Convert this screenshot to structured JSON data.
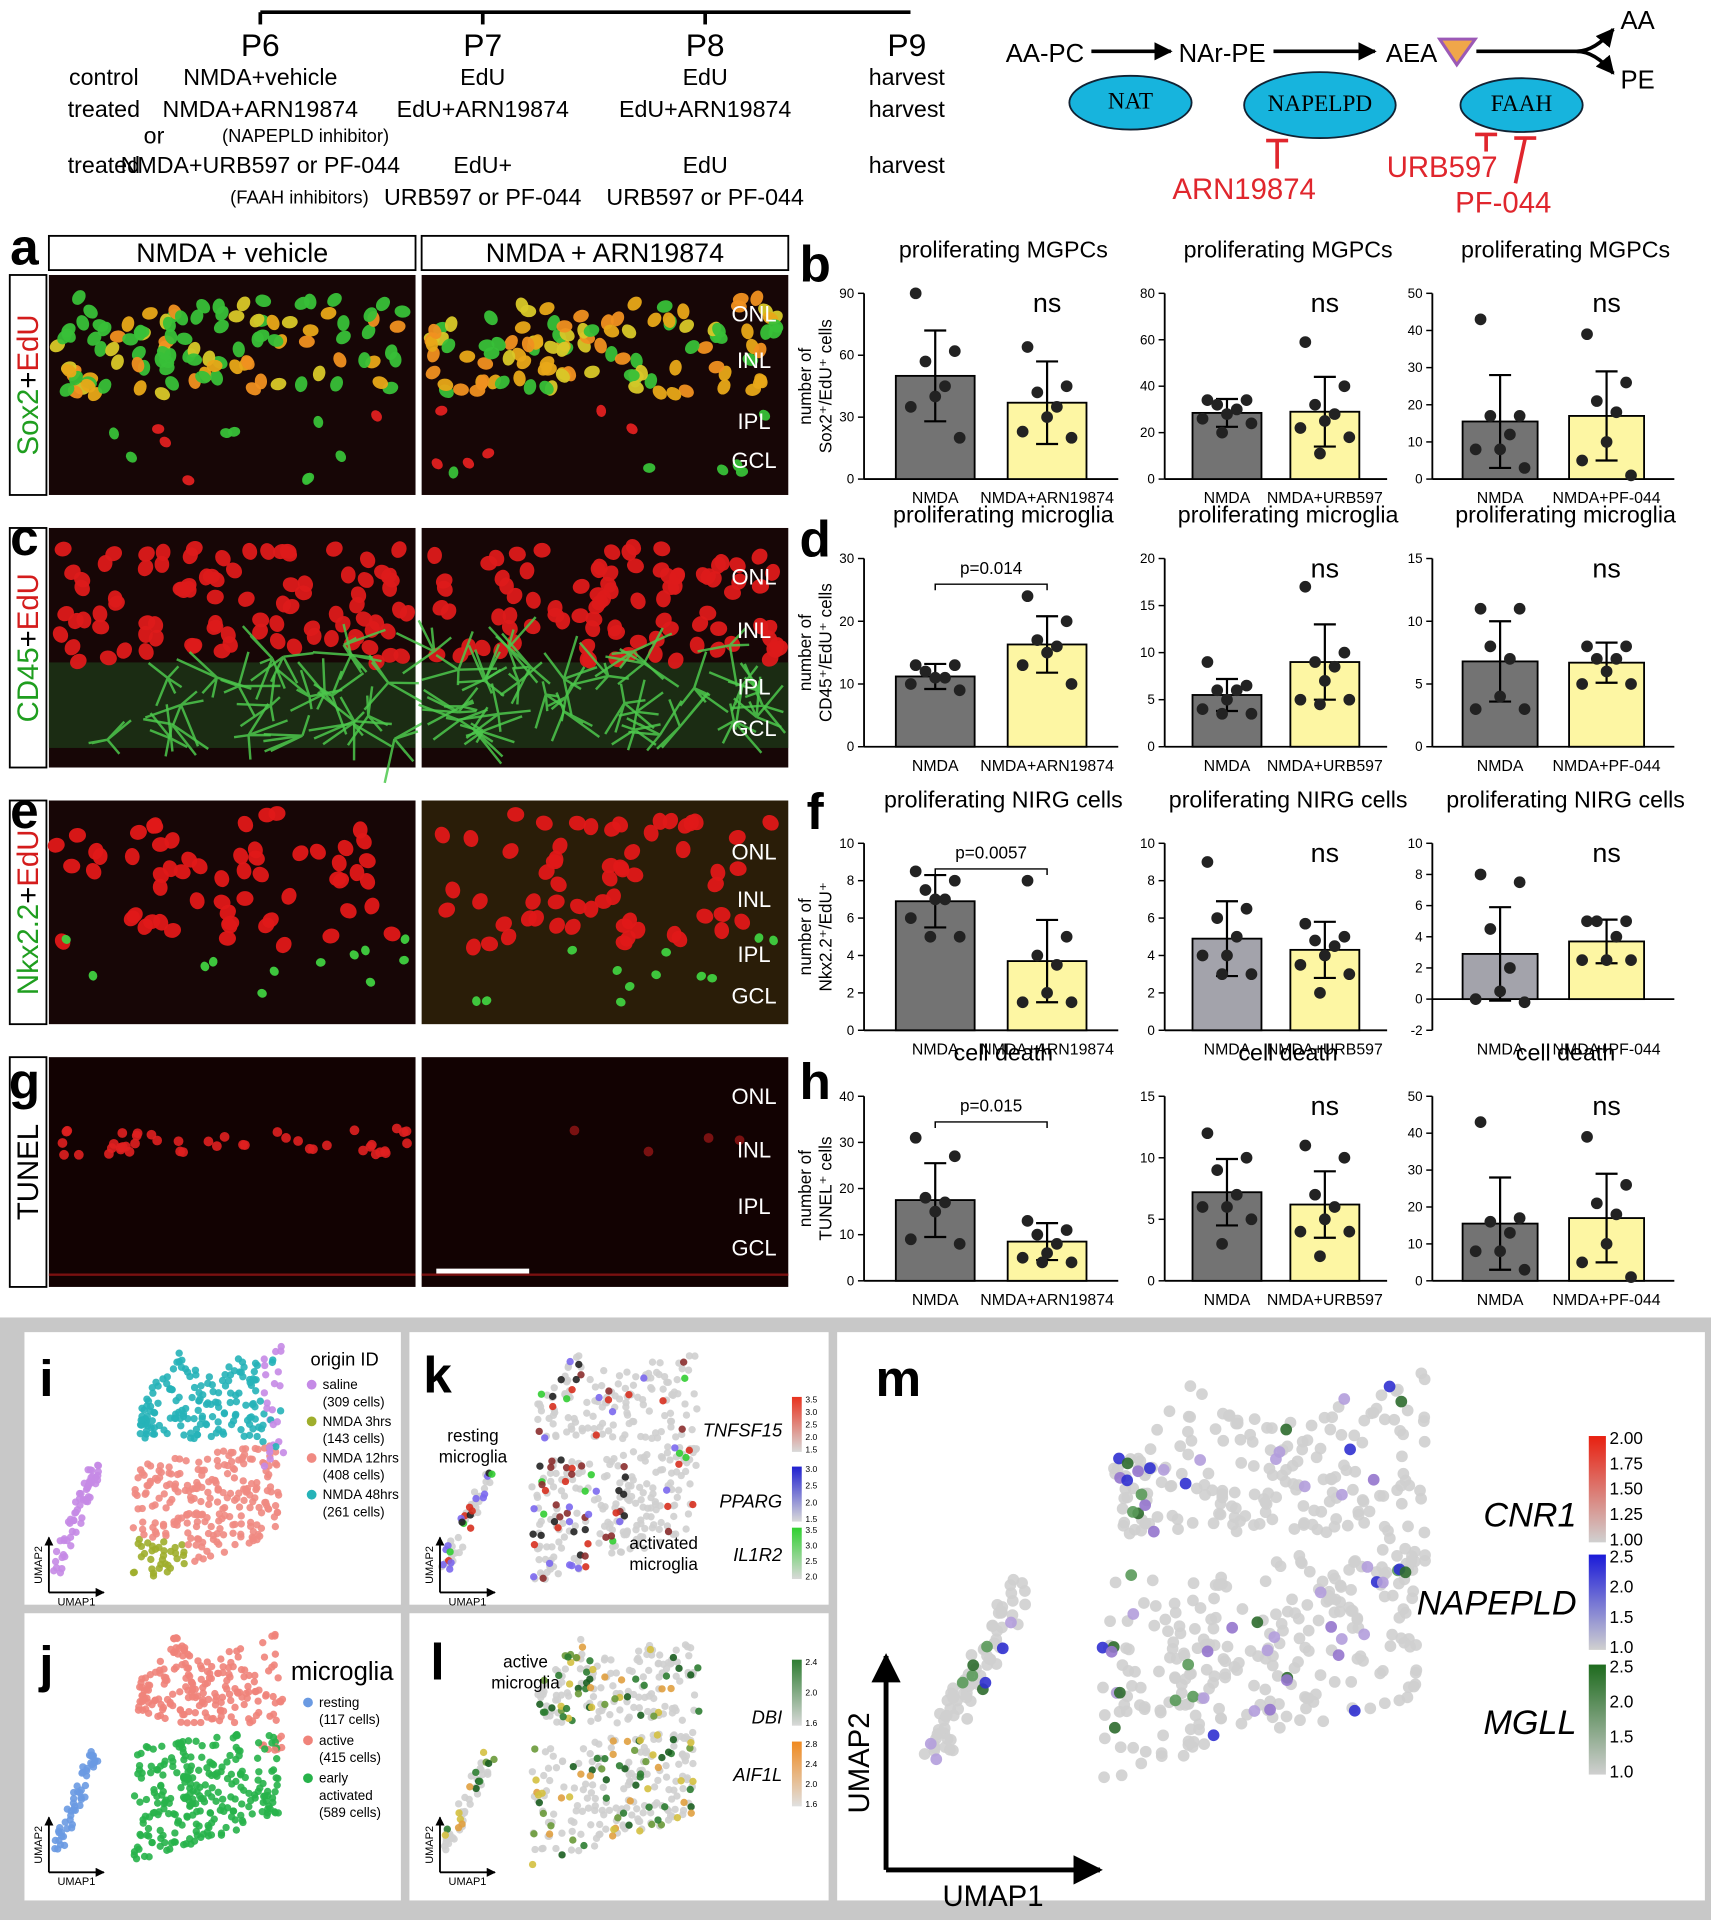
{
  "timeline": {
    "days": [
      "P6",
      "P7",
      "P8",
      "P9"
    ],
    "conditions": [
      "control",
      "treated",
      "or",
      "treated"
    ],
    "columns": [
      [
        "NMDA+vehicle",
        "NMDA+ARN19874",
        "(NAPEPLD inhibitor)",
        "NMDA+URB597 or PF-044",
        "(FAAH inhibitors)"
      ],
      [
        "EdU",
        "EdU+ARN19874",
        "EdU+",
        "URB597 or PF-044"
      ],
      [
        "EdU",
        "EdU+ARN19874",
        "EdU",
        "URB597 or PF-044"
      ],
      [
        "harvest",
        "harvest",
        "harvest"
      ]
    ]
  },
  "pathway": {
    "metabolites": [
      "AA-PC",
      "NAr-PE",
      "AEA",
      "AA",
      "PE"
    ],
    "enzymes": [
      "NAT",
      "NAPELPD",
      "FAAH"
    ],
    "inhibitors": [
      "ARN19874",
      "URB597",
      "PF-044"
    ]
  },
  "panel_labels": [
    "a",
    "b",
    "c",
    "d",
    "e",
    "f",
    "g",
    "h",
    "i",
    "j",
    "k",
    "l",
    "m"
  ],
  "micrographs": {
    "conditions": [
      "NMDA + vehicle",
      "NMDA + ARN19874"
    ],
    "layers": [
      "ONL",
      "INL",
      "IPL",
      "GCL"
    ],
    "rows": [
      {
        "stain": [
          {
            "text": "Sox2",
            "color": "#1f9e1f"
          },
          {
            "text": "+",
            "color": "#000000"
          },
          {
            "text": "EdU",
            "color": "#d41c1c"
          }
        ]
      },
      {
        "stain": [
          {
            "text": "CD45",
            "color": "#1f9e1f"
          },
          {
            "text": "+",
            "color": "#000000"
          },
          {
            "text": "EdU",
            "color": "#d41c1c"
          }
        ]
      },
      {
        "stain": [
          {
            "text": "Nkx2.2",
            "color": "#1f9e1f"
          },
          {
            "text": "+",
            "color": "#000000"
          },
          {
            "text": "EdU",
            "color": "#d41c1c"
          }
        ]
      },
      {
        "stain": [
          {
            "text": "TUNEL",
            "color": "#000000"
          }
        ]
      }
    ]
  },
  "chart_data": [
    {
      "type": "bar",
      "title": "proliferating MGPCs",
      "ylabel": [
        "number of",
        "Sox2⁺/EdU⁺ cells"
      ],
      "categories": [
        "NMDA",
        "NMDA+ARN19874"
      ],
      "values": [
        50,
        37
      ],
      "errors": [
        22,
        20
      ],
      "points": [
        [
          90,
          62,
          57,
          45,
          40,
          35,
          20
        ],
        [
          64,
          45,
          42,
          35,
          30,
          23,
          20
        ]
      ],
      "colors": [
        "#737373",
        "#fdf6a3"
      ],
      "ylim": [
        0,
        90
      ],
      "yticks": [
        0,
        30,
        60,
        90
      ],
      "annotation": "ns"
    },
    {
      "type": "bar",
      "title": "proliferating MGPCs",
      "categories": [
        "NMDA",
        "NMDA+URB597"
      ],
      "values": [
        28.5,
        29
      ],
      "errors": [
        6,
        15
      ],
      "points": [
        [
          34,
          34,
          32,
          30,
          28,
          26,
          24,
          20
        ],
        [
          59,
          40,
          32,
          28,
          25,
          22,
          18,
          11
        ]
      ],
      "colors": [
        "#737373",
        "#fdf6a3"
      ],
      "ylim": [
        0,
        80
      ],
      "yticks": [
        0,
        20,
        40,
        60,
        80
      ],
      "annotation": "ns"
    },
    {
      "type": "bar",
      "title": "proliferating MGPCs",
      "categories": [
        "NMDA",
        "NMDA+PF-044"
      ],
      "values": [
        15.5,
        17
      ],
      "errors": [
        12.5,
        12
      ],
      "points": [
        [
          43,
          17,
          17,
          12,
          8,
          8,
          3
        ],
        [
          39,
          26,
          21,
          18,
          10,
          5,
          1
        ]
      ],
      "colors": [
        "#737373",
        "#fdf6a3"
      ],
      "ylim": [
        0,
        50
      ],
      "yticks": [
        0,
        10,
        20,
        30,
        40,
        50
      ],
      "annotation": "ns"
    },
    {
      "type": "bar",
      "title": "proliferating microglia",
      "ylabel": [
        "number of",
        "CD45⁺/EdU⁺ cells"
      ],
      "categories": [
        "NMDA",
        "NMDA+ARN19874"
      ],
      "values": [
        11.2,
        16.3
      ],
      "errors": [
        2,
        4.5
      ],
      "points": [
        [
          13,
          13,
          12,
          11,
          11,
          10,
          9
        ],
        [
          24,
          20,
          17,
          16,
          15,
          13,
          10
        ]
      ],
      "colors": [
        "#737373",
        "#fdf6a3"
      ],
      "ylim": [
        0,
        30
      ],
      "yticks": [
        0,
        10,
        20,
        30
      ],
      "annotation": "p=0.014",
      "bracket": true
    },
    {
      "type": "bar",
      "title": "proliferating microglia",
      "categories": [
        "NMDA",
        "NMDA+URB597"
      ],
      "values": [
        5.5,
        9
      ],
      "errors": [
        1.7,
        4
      ],
      "points": [
        [
          9,
          6.5,
          6,
          6,
          5,
          4,
          3.5,
          3.5
        ],
        [
          17,
          10,
          9,
          8.5,
          7,
          5,
          5,
          4.5
        ]
      ],
      "colors": [
        "#737373",
        "#fdf6a3"
      ],
      "ylim": [
        0,
        20
      ],
      "yticks": [
        0,
        5,
        10,
        15,
        20
      ],
      "annotation": "ns"
    },
    {
      "type": "bar",
      "title": "proliferating microglia",
      "categories": [
        "NMDA",
        "NMDA+PF-044"
      ],
      "values": [
        6.8,
        6.7
      ],
      "errors": [
        3.2,
        1.6
      ],
      "points": [
        [
          11,
          11,
          8,
          7,
          4,
          3,
          3
        ],
        [
          8,
          8,
          7,
          7,
          6,
          5,
          5
        ]
      ],
      "colors": [
        "#737373",
        "#fdf6a3"
      ],
      "ylim": [
        0,
        15
      ],
      "yticks": [
        0,
        5,
        10,
        15
      ],
      "annotation": "ns"
    },
    {
      "type": "bar",
      "title": "proliferating NIRG cells",
      "ylabel": [
        "number of",
        "Nkx2.2⁺/EdU⁺"
      ],
      "categories": [
        "NMDA",
        "NMDA+ARN19874"
      ],
      "values": [
        6.9,
        3.7
      ],
      "errors": [
        1.4,
        2.2
      ],
      "points": [
        [
          8.5,
          8,
          7.5,
          7,
          7,
          6,
          5,
          5
        ],
        [
          8,
          5,
          4,
          3.5,
          2,
          1.5,
          1.5
        ]
      ],
      "colors": [
        "#737373",
        "#fdf6a3"
      ],
      "ylim": [
        0,
        10
      ],
      "yticks": [
        0,
        2,
        4,
        6,
        8,
        10
      ],
      "annotation": "p=0.0057",
      "bracket": true
    },
    {
      "type": "bar",
      "title": "proliferating NIRG cells",
      "categories": [
        "NMDA",
        "NMDA+URB597"
      ],
      "values": [
        4.9,
        4.3
      ],
      "errors": [
        2,
        1.5
      ],
      "points": [
        [
          9,
          6.5,
          6,
          5,
          4,
          4,
          3,
          3
        ],
        [
          5.7,
          5,
          4.8,
          4.5,
          4,
          3.5,
          3,
          2
        ]
      ],
      "colors": [
        "#a3a3ab",
        "#fdf6a3"
      ],
      "ylim": [
        0,
        10
      ],
      "yticks": [
        0,
        2,
        4,
        6,
        8,
        10
      ],
      "annotation": "ns"
    },
    {
      "type": "bar",
      "title": "proliferating NIRG cells",
      "categories": [
        "NMDA",
        "NMDA+PF-044"
      ],
      "values": [
        2.9,
        3.7
      ],
      "errors": [
        3,
        1.4
      ],
      "points": [
        [
          8,
          7.5,
          4.5,
          2,
          0.5,
          0,
          -0.2
        ],
        [
          5,
          5,
          5,
          4,
          2.5,
          2.5,
          2.5
        ]
      ],
      "colors": [
        "#a3a3ab",
        "#fdf6a3"
      ],
      "ylim": [
        -2,
        10
      ],
      "yticks": [
        -2,
        0,
        2,
        4,
        6,
        8,
        10
      ],
      "annotation": "ns"
    },
    {
      "type": "bar",
      "title": "cell death",
      "ylabel": [
        "number of",
        "TUNEL⁺ cells"
      ],
      "categories": [
        "NMDA",
        "NMDA+ARN19874"
      ],
      "values": [
        17.5,
        8.5
      ],
      "errors": [
        8,
        4
      ],
      "points": [
        [
          31,
          27,
          18,
          17,
          15,
          9,
          8
        ],
        [
          13,
          11,
          10,
          8,
          6,
          5,
          4,
          4
        ]
      ],
      "colors": [
        "#737373",
        "#fdf6a3"
      ],
      "ylim": [
        0,
        40
      ],
      "yticks": [
        0,
        10,
        20,
        30,
        40
      ],
      "annotation": "p=0.015",
      "bracket": true
    },
    {
      "type": "bar",
      "title": "cell death",
      "categories": [
        "NMDA",
        "NMDA+URB597"
      ],
      "values": [
        7.2,
        6.2
      ],
      "errors": [
        2.7,
        2.7
      ],
      "points": [
        [
          12,
          10,
          9,
          7,
          6,
          6,
          5,
          3
        ],
        [
          11,
          10,
          7,
          6,
          5,
          4,
          4,
          2
        ]
      ],
      "colors": [
        "#737373",
        "#fdf6a3"
      ],
      "ylim": [
        0,
        15
      ],
      "yticks": [
        0,
        5,
        10,
        15
      ],
      "annotation": "ns"
    },
    {
      "type": "bar",
      "title": "cell death",
      "categories": [
        "NMDA",
        "NMDA+PF-044"
      ],
      "values": [
        15.5,
        17
      ],
      "errors": [
        12.5,
        12
      ],
      "points": [
        [
          43,
          17,
          16,
          13,
          8,
          8,
          3
        ],
        [
          39,
          26,
          21,
          18,
          10,
          5,
          1
        ]
      ],
      "colors": [
        "#737373",
        "#fdf6a3"
      ],
      "ylim": [
        0,
        50
      ],
      "yticks": [
        0,
        10,
        20,
        30,
        40,
        50
      ],
      "annotation": "ns"
    }
  ],
  "umap": {
    "axes": [
      "UMAP1",
      "UMAP2"
    ],
    "i": {
      "title": "origin ID",
      "legend": [
        {
          "lines": [
            "saline",
            "(309 cells)"
          ],
          "color": "#c58ae6"
        },
        {
          "lines": [
            "NMDA 3hrs",
            "(143 cells)"
          ],
          "color": "#9fae2c"
        },
        {
          "lines": [
            "NMDA 12hrs",
            "(408 cells)"
          ],
          "color": "#f08a82"
        },
        {
          "lines": [
            "NMDA 48hrs",
            "(261 cells)"
          ],
          "color": "#26b3b8"
        }
      ]
    },
    "j": {
      "title": "microglia",
      "legend": [
        {
          "lines": [
            "resting",
            "(117 cells)"
          ],
          "color": "#6a9ae2"
        },
        {
          "lines": [
            "active",
            "(415 cells)"
          ],
          "color": "#f0837a"
        },
        {
          "lines": [
            "early",
            "activated",
            "(589 cells)"
          ],
          "color": "#27b24a"
        }
      ]
    },
    "k": {
      "notes": [
        [
          "resting",
          "microglia"
        ],
        [
          "activated",
          "microglia"
        ]
      ],
      "genes": [
        {
          "name": "TNFSF15",
          "ticks": [
            "3.5",
            "3.0",
            "2.5",
            "2.0",
            "1.5"
          ],
          "colors": [
            "#d9d9d9",
            "#e8321e"
          ]
        },
        {
          "name": "PPARG",
          "ticks": [
            "3.0",
            "2.5",
            "2.0",
            "1.5"
          ],
          "colors": [
            "#d9d9d9",
            "#2020d0"
          ]
        },
        {
          "name": "IL1R2",
          "ticks": [
            "3.5",
            "3.0",
            "2.5",
            "2.0"
          ],
          "colors": [
            "#d9d9d9",
            "#30d030"
          ]
        }
      ]
    },
    "l": {
      "notes": [
        [
          "active",
          "microglia"
        ]
      ],
      "genes": [
        {
          "name": "DBI",
          "ticks": [
            "2.4",
            "2.0",
            "1.6"
          ],
          "colors": [
            "#d9d9d9",
            "#2e7d32"
          ]
        },
        {
          "name": "AIF1L",
          "ticks": [
            "2.8",
            "2.4",
            "2.0",
            "1.6"
          ],
          "colors": [
            "#e0e0e0",
            "#f08a20"
          ]
        }
      ]
    },
    "m": {
      "genes": [
        {
          "name": "CNR1",
          "ticks": [
            "2.00",
            "1.75",
            "1.50",
            "1.25",
            "1.00"
          ],
          "colors": [
            "#d0d0d0",
            "#e82010"
          ]
        },
        {
          "name": "NAPEPLD",
          "ticks": [
            "2.5",
            "2.0",
            "1.5",
            "1.0"
          ],
          "colors": [
            "#d0d0d0",
            "#1a1ad8"
          ]
        },
        {
          "name": "MGLL",
          "ticks": [
            "2.5",
            "2.0",
            "1.5",
            "1.0"
          ],
          "colors": [
            "#d0d0d0",
            "#1e6b1e"
          ]
        }
      ]
    }
  }
}
